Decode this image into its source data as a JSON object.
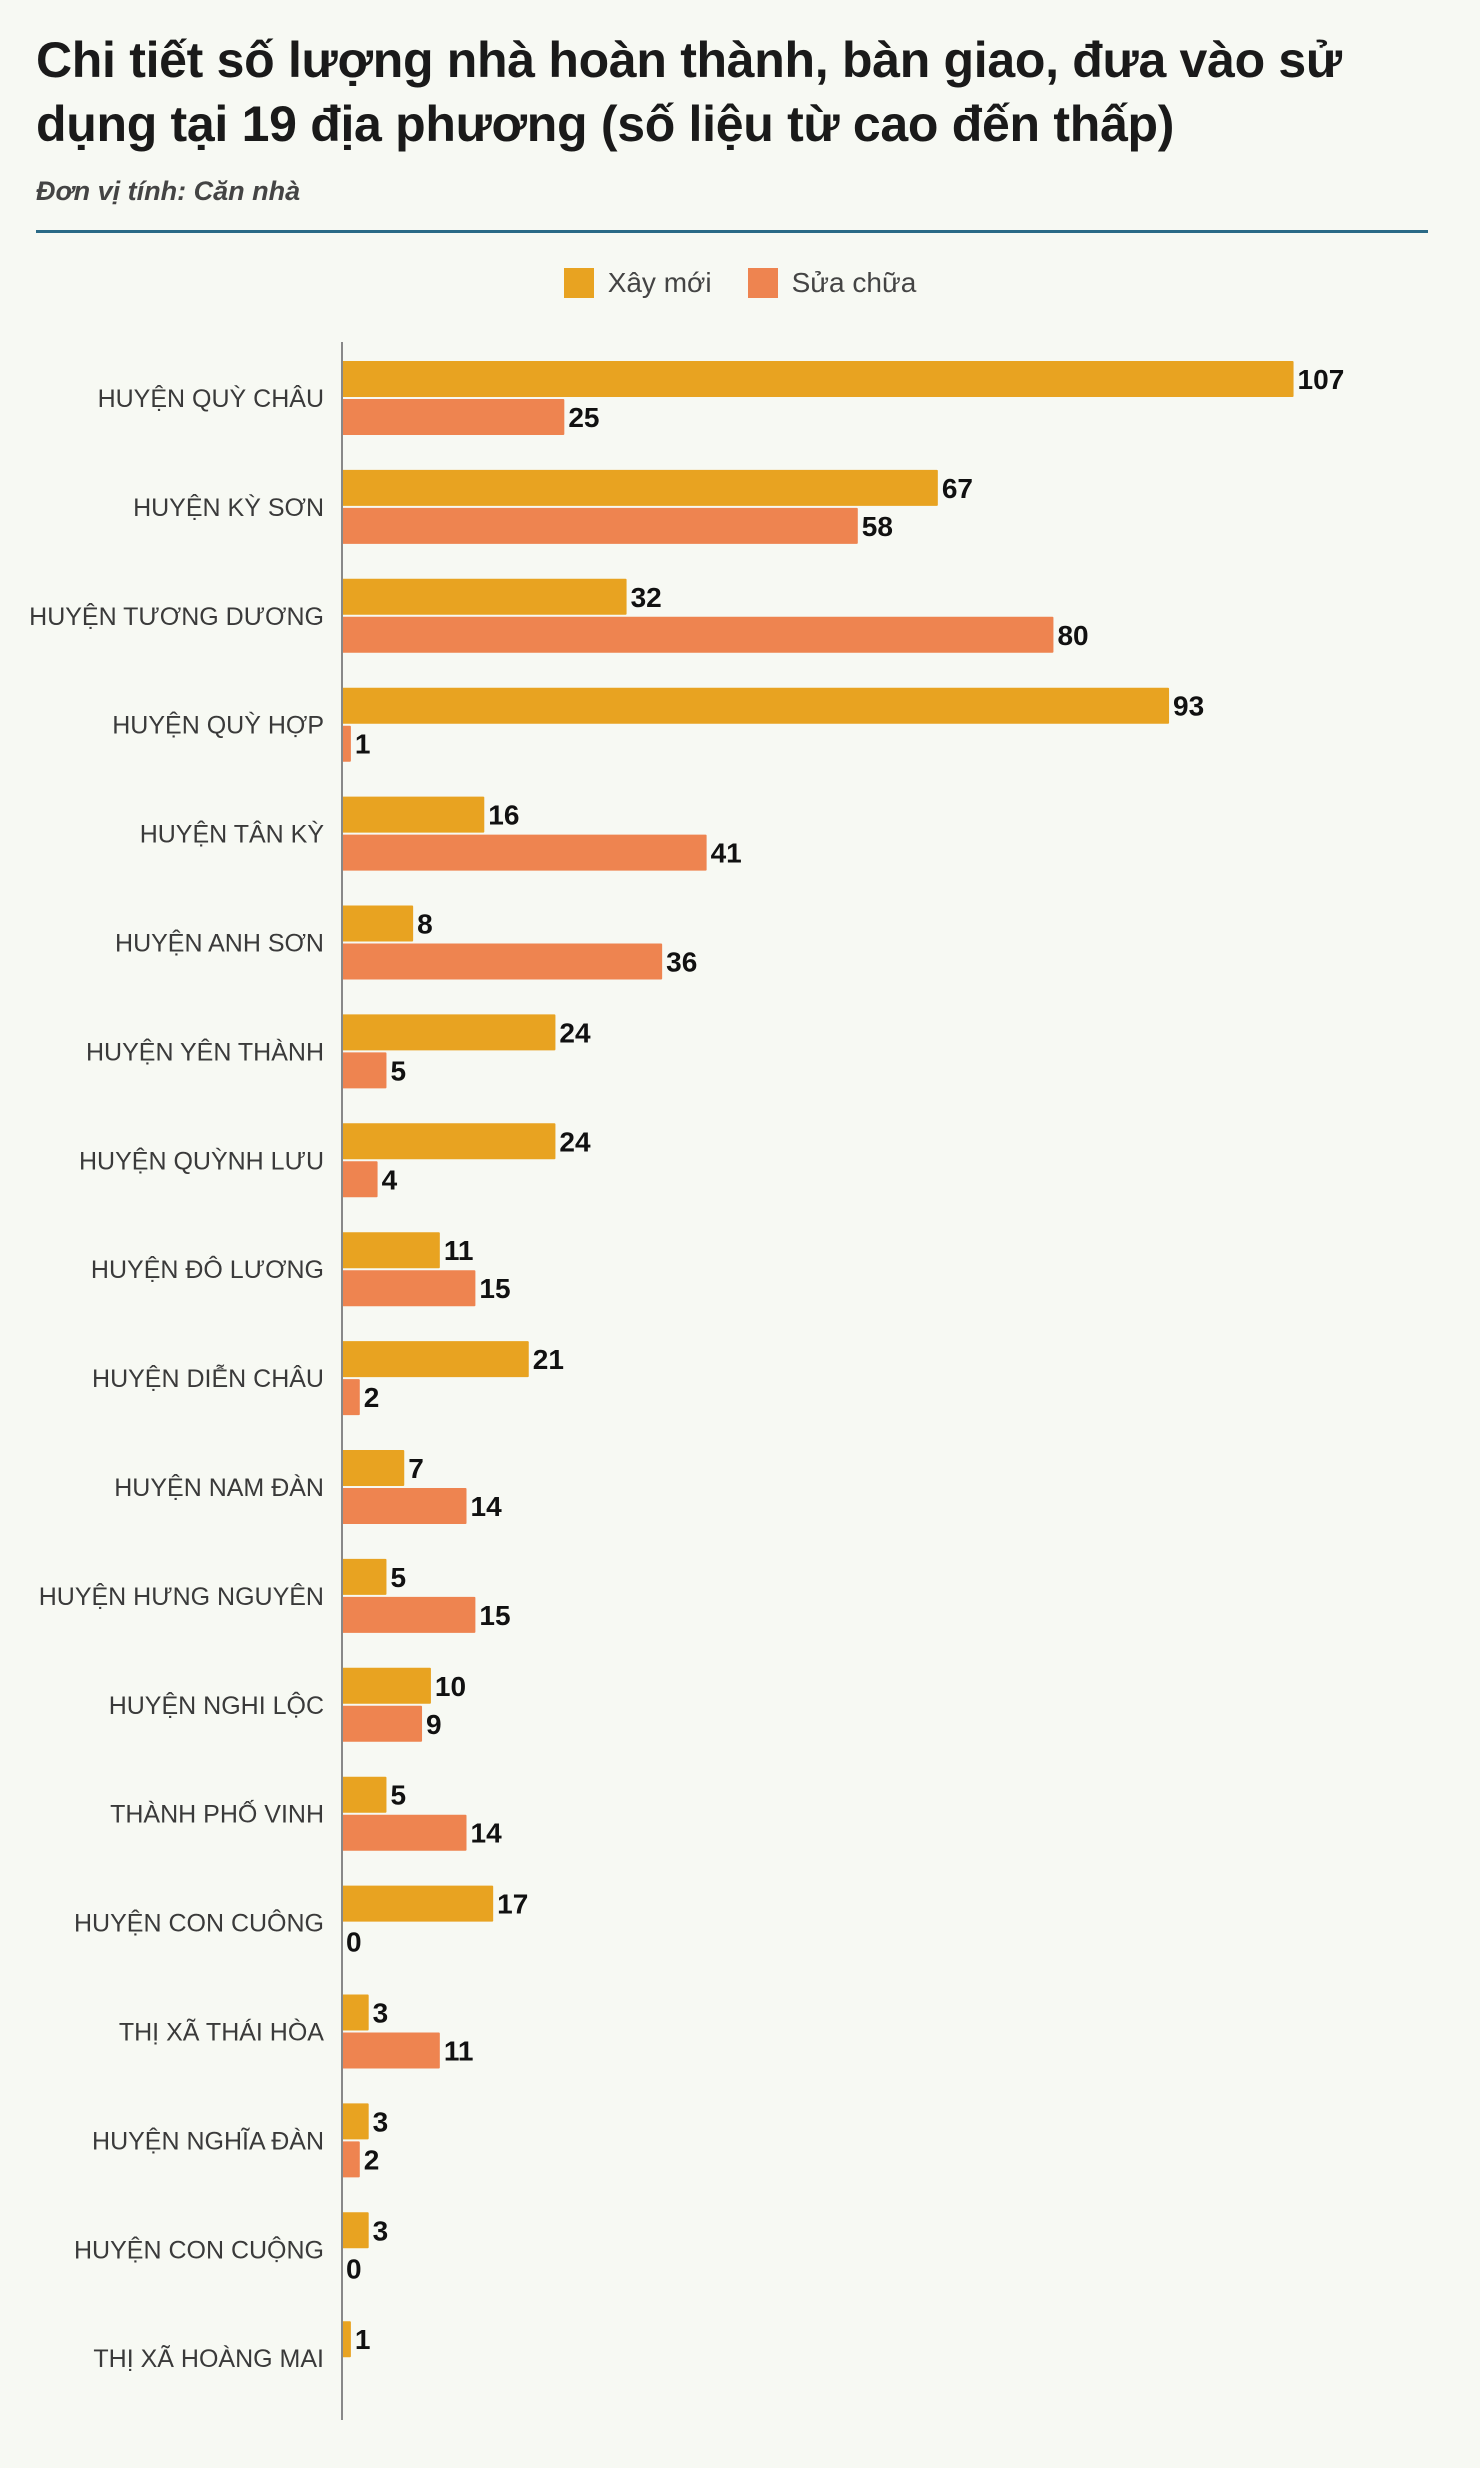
{
  "header": {
    "title": "Chi tiết số lượng nhà hoàn thành, bàn giao, đưa vào sử dụng tại 19 địa phương (số liệu từ cao đến thấp)",
    "unit": "Đơn vị tính: Căn nhà"
  },
  "colors": {
    "new": "#e8a321",
    "repair": "#ee8450",
    "axis": "#888888",
    "rule": "#2a6a86"
  },
  "chart_data": {
    "type": "bar",
    "orientation": "horizontal",
    "title": "Chi tiết số lượng nhà hoàn thành, bàn giao, đưa vào sử dụng tại 19 địa phương (số liệu từ cao đến thấp)",
    "subtitle": "Đơn vị tính: Căn nhà",
    "legend_position": "top-center",
    "grid": false,
    "xlim": [
      0,
      110
    ],
    "categories": [
      "HUYỆN QUỲ CHÂU",
      "HUYỆN KỲ SƠN",
      "HUYỆN TƯƠNG DƯƠNG",
      "HUYỆN QUỲ HỢP",
      "HUYỆN TÂN KỲ",
      "HUYỆN ANH SƠN",
      "HUYỆN YÊN THÀNH",
      "HUYỆN QUỲNH LƯU",
      "HUYỆN ĐÔ LƯƠNG",
      "HUYỆN DIỄN CHÂU",
      "HUYỆN NAM ĐÀN",
      "HUYỆN HƯNG NGUYÊN",
      "HUYỆN NGHI LỘC",
      "THÀNH PHỐ VINH",
      "HUYỆN CON CUÔNG",
      "THỊ XÃ THÁI HÒA",
      "HUYỆN NGHĨA ĐÀN",
      "HUYỆN CON CUỘNG",
      "THỊ XÃ HOÀNG MAI"
    ],
    "series": [
      {
        "name": "Xây mới",
        "values": [
          107,
          67,
          32,
          93,
          16,
          8,
          24,
          24,
          11,
          21,
          7,
          5,
          10,
          5,
          17,
          3,
          3,
          3,
          1
        ]
      },
      {
        "name": "Sửa chữa",
        "values": [
          25,
          58,
          80,
          1,
          41,
          36,
          5,
          4,
          15,
          2,
          14,
          15,
          9,
          14,
          0,
          11,
          2,
          0,
          null
        ]
      }
    ]
  }
}
